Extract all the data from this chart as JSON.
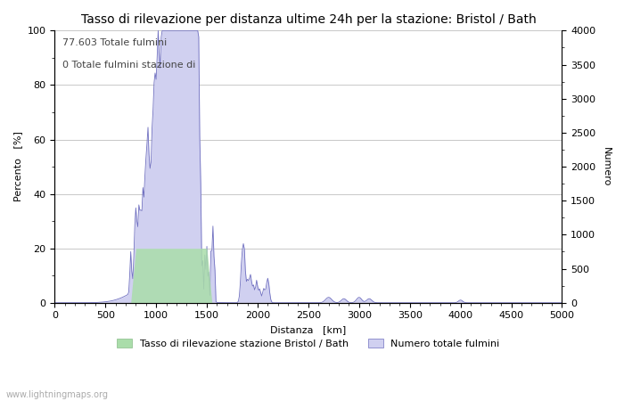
{
  "title": "Tasso di rilevazione per distanza ultime 24h per la stazione: Bristol / Bath",
  "xlabel": "Distanza   [km]",
  "ylabel_left": "Percento   [%]",
  "ylabel_right": "Numero",
  "annotation_line1": "77.603 Totale fulmini",
  "annotation_line2": "0 Totale fulmini stazione di",
  "legend_label1": "Tasso di rilevazione stazione Bristol / Bath",
  "legend_label2": "Numero totale fulmini",
  "xlim": [
    0,
    5000
  ],
  "ylim_left": [
    0,
    100
  ],
  "ylim_right": [
    0,
    4000
  ],
  "yticks_left": [
    0,
    20,
    40,
    60,
    80,
    100
  ],
  "yticks_right": [
    0,
    500,
    1000,
    1500,
    2000,
    2500,
    3000,
    3500,
    4000
  ],
  "xticks": [
    0,
    500,
    1000,
    1500,
    2000,
    2500,
    3000,
    3500,
    4000,
    4500,
    5000
  ],
  "watermark": "www.lightningmaps.org",
  "bg_color": "#ffffff",
  "grid_color": "#c8c8c8",
  "fill_blue_color": "#d0d0f0",
  "fill_green_color": "#aaddaa",
  "line_blue_color": "#7070c0",
  "title_fontsize": 10,
  "label_fontsize": 8,
  "tick_fontsize": 8,
  "annotation_fontsize": 8
}
